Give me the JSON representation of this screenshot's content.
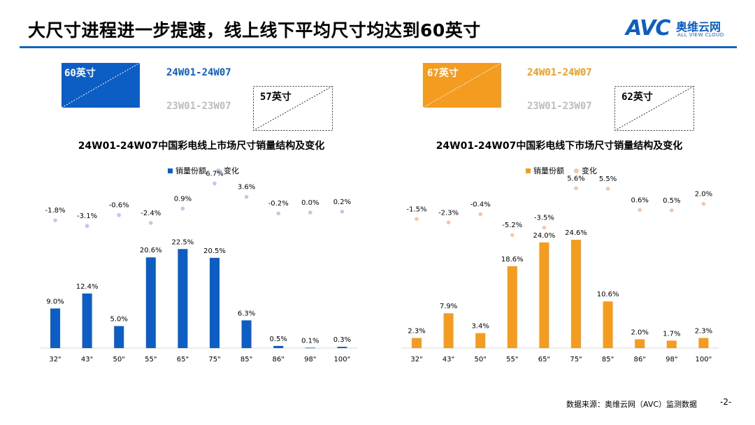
{
  "header": {
    "title": "大尺寸进程进一步提速，线上线下平均尺寸均达到60英寸"
  },
  "logo": {
    "brand": "AVC",
    "cn": "奥维云网",
    "en": "ALL VIEW CLOUD"
  },
  "colors": {
    "online": "#0c5ec5",
    "online_light": "#b8cbe8",
    "offline": "#f39c1f",
    "offline_light": "#f5c7a8",
    "rule": "#1565c0"
  },
  "panels": [
    {
      "legend_current_size": "60英寸",
      "legend_current_period": "24W01-24W07",
      "legend_prev_size": "57英寸",
      "legend_prev_period": "23W01-23W07"
    },
    {
      "legend_current_size": "67英寸",
      "legend_current_period": "24W01-24W07",
      "legend_prev_size": "62英寸",
      "legend_prev_period": "23W01-23W07"
    }
  ],
  "chart_data": [
    {
      "type": "bar",
      "title": "24W01-24W07中国彩电线上市场尺寸销量结构及变化",
      "categories": [
        "32\"",
        "43\"",
        "50\"",
        "55\"",
        "65\"",
        "75\"",
        "85\"",
        "86\"",
        "98\"",
        "100\""
      ],
      "series": [
        {
          "name": "销量份额",
          "values": [
            9.0,
            12.4,
            5.0,
            20.6,
            22.5,
            20.5,
            6.3,
            0.5,
            0.1,
            0.3
          ]
        },
        {
          "name": "变化",
          "values": [
            -1.8,
            -3.1,
            -0.6,
            -2.4,
            0.9,
            6.7,
            3.6,
            -0.2,
            0.0,
            0.2
          ]
        }
      ],
      "bar_labels": [
        "9.0%",
        "12.4%",
        "5.0%",
        "20.6%",
        "22.5%",
        "20.5%",
        "6.3%",
        "0.5%",
        "0.1%",
        "0.3%"
      ],
      "change_labels": [
        "-1.8%",
        "-3.1%",
        "-0.6%",
        "-2.4%",
        "0.9%",
        "6.7%",
        "3.6%",
        "-0.2%",
        "0.0%",
        "0.2%"
      ],
      "legend_placement": "top-center"
    },
    {
      "type": "bar",
      "title": "24W01-24W07中国彩电线下市场尺寸销量结构及变化",
      "categories": [
        "32\"",
        "43\"",
        "50\"",
        "55\"",
        "65\"",
        "75\"",
        "85\"",
        "86\"",
        "98\"",
        "100\""
      ],
      "series": [
        {
          "name": "销量份额",
          "values": [
            2.3,
            7.9,
            3.4,
            18.6,
            24.0,
            24.6,
            10.6,
            2.0,
            1.7,
            2.3
          ]
        },
        {
          "name": "变化",
          "values": [
            -1.5,
            -2.3,
            -0.4,
            -5.2,
            -3.5,
            5.6,
            5.5,
            0.6,
            0.5,
            2.0
          ]
        }
      ],
      "bar_labels": [
        "2.3%",
        "7.9%",
        "3.4%",
        "18.6%",
        "24.0%",
        "24.6%",
        "10.6%",
        "2.0%",
        "1.7%",
        "2.3%"
      ],
      "change_labels": [
        "-1.5%",
        "-2.3%",
        "-0.4%",
        "-5.2%",
        "-3.5%",
        "5.6%",
        "5.5%",
        "0.6%",
        "0.5%",
        "2.0%"
      ],
      "legend_placement": "top-center"
    }
  ],
  "footer": {
    "source": "数据来源：奥维云网（AVC）监测数据",
    "page": "-2-"
  }
}
